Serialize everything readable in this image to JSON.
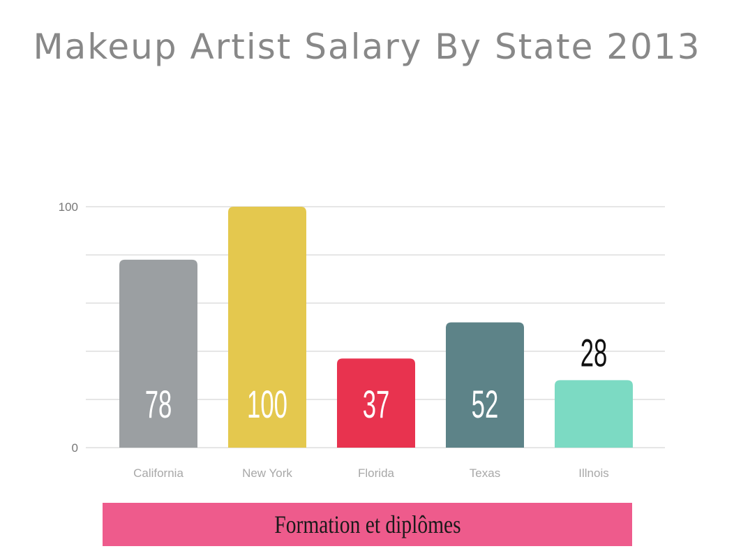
{
  "chart_data": {
    "type": "bar",
    "title": "Makeup Artist Salary By State 2013",
    "categories": [
      "California",
      "New York",
      "Florida",
      "Texas",
      "Illnois"
    ],
    "values": [
      78,
      100,
      37,
      52,
      28
    ],
    "bar_colors": [
      "#9b9fa2",
      "#e4c84e",
      "#e8334f",
      "#5d8388",
      "#7cdac3"
    ],
    "ylim": [
      0,
      100
    ],
    "yticks": [
      0,
      100
    ],
    "grid": true,
    "xlabel": "",
    "ylabel": ""
  },
  "banner": {
    "text": "Formation et diplômes",
    "color": "#ee5b8c"
  }
}
